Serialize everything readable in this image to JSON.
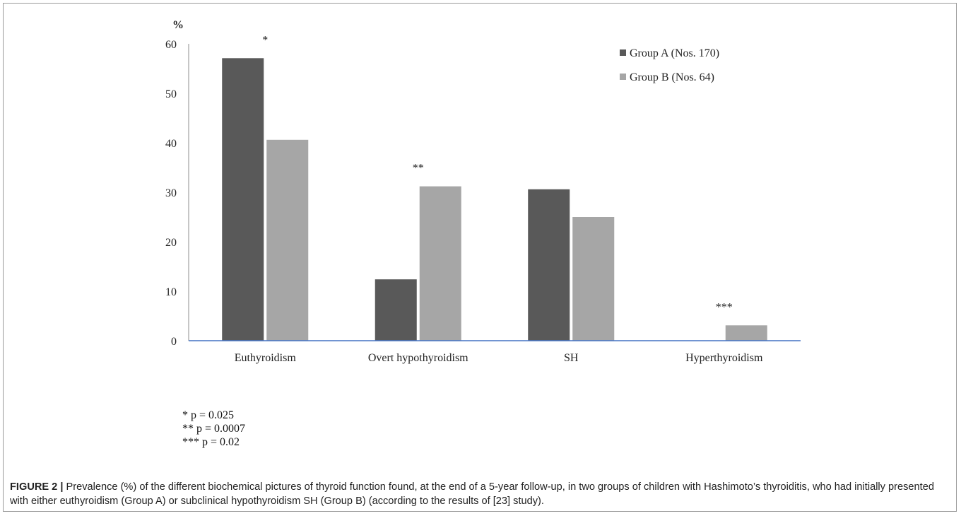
{
  "chart_data": {
    "type": "bar",
    "ylabel": "%",
    "ylim": [
      0,
      60
    ],
    "yticks": [
      0,
      10,
      20,
      30,
      40,
      50,
      60
    ],
    "categories": [
      "Euthyroidism",
      "Overt hypothyroidism",
      "SH",
      "Hyperthyroidism"
    ],
    "series": [
      {
        "name": "Group A (Nos. 170)",
        "color": "#595959",
        "values": [
          57.1,
          12.4,
          30.6,
          0
        ]
      },
      {
        "name": "Group B (Nos. 64)",
        "color": "#a6a6a6",
        "values": [
          40.6,
          31.2,
          25.0,
          3.1
        ]
      }
    ],
    "annotations": [
      {
        "category": "Euthyroidism",
        "text": "*"
      },
      {
        "category": "Overt hypothyroidism",
        "text": "**"
      },
      {
        "category": "Hyperthyroidism",
        "text": "***"
      }
    ],
    "axis_color": "#4472c4",
    "grid": false,
    "legend_position": "top-right"
  },
  "notes": [
    "* p = 0.025",
    "** p = 0.0007",
    "*** p = 0.02"
  ],
  "caption": {
    "label": "FIGURE 2 |",
    "text": " Prevalence (%) of the different biochemical pictures of thyroid function found, at the end of a 5-year follow-up, in two groups of children with Hashimoto’s thyroiditis, who had initially presented with either euthyroidism (Group A) or subclinical hypothyroidism SH (Group B) (according to the results of [23] study)."
  }
}
